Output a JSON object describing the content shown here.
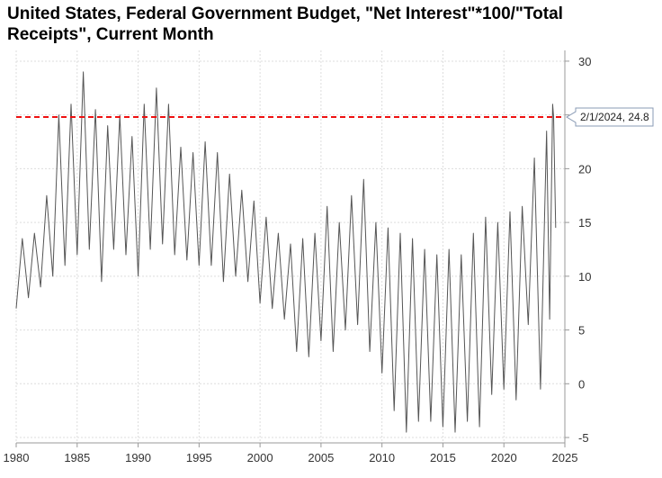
{
  "chart_data": {
    "type": "line",
    "title": "United States, Federal Government Budget, \"Net Interest\"*100/\"Total Receipts\", Current Month",
    "xlabel": "",
    "ylabel": "",
    "xlim": [
      1980,
      2025
    ],
    "ylim": [
      -5.5,
      31
    ],
    "x_ticks": [
      1980,
      1985,
      1990,
      1995,
      2000,
      2005,
      2010,
      2015,
      2020,
      2025
    ],
    "y_ticks": [
      -5,
      0,
      5,
      10,
      15,
      20,
      25,
      30
    ],
    "y_axis_position": "right",
    "grid": true,
    "reference_line": {
      "value": 24.8,
      "style": "dashed",
      "color": "#ee1111"
    },
    "callout": {
      "label": "2/1/2024, 24.8",
      "x": 2024.08,
      "y": 24.8
    },
    "series": [
      {
        "color": "#555555",
        "x": [
          1980.0,
          1980.5,
          1981.0,
          1981.5,
          1982.0,
          1982.5,
          1983.0,
          1983.5,
          1984.0,
          1984.5,
          1985.0,
          1985.5,
          1986.0,
          1986.5,
          1987.0,
          1987.5,
          1988.0,
          1988.5,
          1989.0,
          1989.5,
          1990.0,
          1990.5,
          1991.0,
          1991.5,
          1992.0,
          1992.5,
          1993.0,
          1993.5,
          1994.0,
          1994.5,
          1995.0,
          1995.5,
          1996.0,
          1996.5,
          1997.0,
          1997.5,
          1998.0,
          1998.5,
          1999.0,
          1999.5,
          2000.0,
          2000.5,
          2001.0,
          2001.5,
          2002.0,
          2002.5,
          2003.0,
          2003.5,
          2004.0,
          2004.5,
          2005.0,
          2005.5,
          2006.0,
          2006.5,
          2007.0,
          2007.5,
          2008.0,
          2008.5,
          2009.0,
          2009.5,
          2010.0,
          2010.5,
          2011.0,
          2011.5,
          2012.0,
          2012.5,
          2013.0,
          2013.5,
          2014.0,
          2014.5,
          2015.0,
          2015.5,
          2016.0,
          2016.5,
          2017.0,
          2017.5,
          2018.0,
          2018.5,
          2019.0,
          2019.5,
          2020.0,
          2020.5,
          2021.0,
          2021.5,
          2022.0,
          2022.5,
          2023.0,
          2023.5,
          2023.75,
          2024.0,
          2024.08,
          2024.25
        ],
        "values": [
          7.0,
          13.5,
          8.0,
          14.0,
          9.0,
          17.5,
          10.0,
          25.0,
          11.0,
          26.0,
          12.0,
          29.0,
          12.5,
          25.5,
          9.5,
          24.0,
          12.5,
          25.0,
          12.0,
          23.0,
          10.0,
          26.0,
          12.5,
          27.5,
          13.0,
          26.0,
          12.0,
          22.0,
          11.5,
          21.5,
          11.0,
          22.5,
          11.0,
          21.5,
          9.5,
          19.5,
          10.0,
          18.0,
          9.5,
          17.0,
          7.5,
          15.5,
          7.0,
          14.0,
          6.0,
          13.0,
          3.0,
          13.5,
          2.5,
          14.0,
          4.0,
          16.5,
          3.0,
          15.0,
          5.0,
          17.5,
          5.5,
          19.0,
          3.0,
          15.0,
          1.0,
          14.5,
          -2.5,
          14.0,
          -4.5,
          13.5,
          -3.5,
          12.5,
          -3.5,
          12.0,
          -4.0,
          12.5,
          -4.5,
          12.0,
          -3.5,
          14.0,
          -4.0,
          15.5,
          -1.0,
          15.0,
          -0.5,
          16.0,
          -1.5,
          16.5,
          5.5,
          21.0,
          -0.5,
          23.5,
          6.0,
          26.0,
          24.8,
          14.5
        ]
      }
    ]
  }
}
